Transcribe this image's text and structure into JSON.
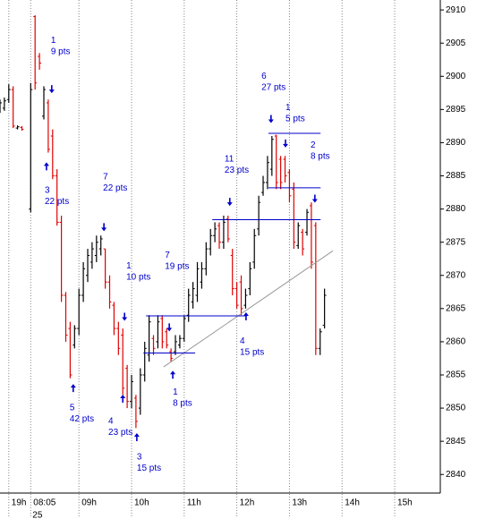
{
  "chart_data": {
    "type": "ohlc",
    "up_color": "#000000",
    "down_color": "#e00000",
    "annotation_color": "#0000cc",
    "level_color": "#0000cc",
    "trend_color": "#999999",
    "xlim": [
      0,
      100.4
    ],
    "ylim": [
      2837.2,
      2911.5
    ],
    "yticks": [
      2840,
      2845,
      2850,
      2855,
      2860,
      2865,
      2870,
      2875,
      2880,
      2885,
      2890,
      2895,
      2900,
      2905,
      2910
    ],
    "xticks": [
      {
        "value": 2,
        "label": "19h"
      },
      {
        "value": 7,
        "label": "08:05"
      },
      {
        "value": 18,
        "label": "09h"
      },
      {
        "value": 30,
        "label": "10h"
      },
      {
        "value": 42,
        "label": "11h"
      },
      {
        "value": 54,
        "label": "12h"
      },
      {
        "value": 66,
        "label": "13h"
      },
      {
        "value": 78,
        "label": "14h"
      },
      {
        "value": 90,
        "label": "15h"
      }
    ],
    "date_label": "25",
    "grid": true,
    "x": [
      0,
      1,
      2,
      3,
      4,
      5,
      7,
      8,
      9,
      10,
      11,
      12,
      13,
      14,
      15,
      16,
      17,
      18,
      19,
      20,
      21,
      22,
      23,
      24,
      25,
      26,
      27,
      28,
      29,
      30,
      31,
      32,
      33,
      34,
      35,
      36,
      37,
      38,
      39,
      40,
      41,
      42,
      43,
      44,
      45,
      46,
      47,
      48,
      49,
      50,
      51,
      52,
      53,
      54,
      55,
      56,
      57,
      58,
      59,
      60,
      61,
      62,
      63,
      64,
      65,
      66,
      67,
      68,
      69,
      70,
      71,
      72,
      73,
      74
    ],
    "open": [
      2895,
      2895.2,
      2896.5,
      2898,
      2892.2,
      2892.3,
      2880,
      2909,
      2903,
      2894,
      2896,
      2891,
      2885,
      2878,
      2867,
      2862,
      2859.5,
      2862,
      2867,
      2870,
      2872,
      2873,
      2874,
      2874,
      2869,
      2865.5,
      2862,
      2861,
      2856,
      2851,
      2851.5,
      2850,
      2855,
      2858,
      2860.5,
      2860,
      2863.5,
      2861.5,
      2858.5,
      2858.5,
      2859.5,
      2860.5,
      2864,
      2866,
      2867,
      2869,
      2871,
      2874,
      2876,
      2877.5,
      2875,
      2878.5,
      2873,
      2868,
      2869,
      2865.5,
      2868,
      2872,
      2877,
      2882.5,
      2884,
      2886,
      2891,
      2887.5,
      2887.5,
      2885.5,
      2883,
      2874.5,
      2876.5,
      2876.5,
      2880.5,
      2877.5,
      2859,
      2862.5
    ],
    "high": [
      2896.5,
      2896.8,
      2898.8,
      2898.5,
      2892.6,
      2892.5,
      2899,
      2909.2,
      2903.5,
      2898.5,
      2896.5,
      2892,
      2886,
      2879,
      2867.5,
      2863,
      2862.5,
      2868,
      2872,
      2874,
      2875,
      2876,
      2876,
      2874,
      2870,
      2866,
      2863,
      2862,
      2856.5,
      2855,
      2852,
      2856,
      2860,
      2864,
      2861,
      2864,
      2864,
      2862,
      2859,
      2861,
      2861,
      2864,
      2868,
      2869,
      2872,
      2872,
      2875,
      2877,
      2878,
      2878,
      2879,
      2879,
      2874,
      2869,
      2870,
      2868,
      2872,
      2877,
      2882,
      2885,
      2888,
      2891,
      2891.2,
      2888,
      2888,
      2886,
      2884,
      2878,
      2877,
      2880,
      2881,
      2878,
      2862,
      2868
    ],
    "low": [
      2894.5,
      2894.8,
      2896,
      2892.2,
      2892,
      2891.8,
      2879.5,
      2898,
      2901,
      2893.5,
      2888.5,
      2884.5,
      2877.5,
      2866,
      2860,
      2854.5,
      2859,
      2861,
      2866,
      2869,
      2871,
      2872,
      2873,
      2868,
      2865,
      2861,
      2858,
      2852,
      2850,
      2850,
      2847,
      2849,
      2854,
      2857,
      2858,
      2859,
      2859,
      2859,
      2857,
      2858,
      2859,
      2860,
      2863,
      2865,
      2866,
      2868,
      2870,
      2873,
      2875,
      2874,
      2874,
      2875,
      2867,
      2865,
      2864,
      2865,
      2867,
      2871,
      2876,
      2882,
      2883,
      2885,
      2883,
      2883,
      2884,
      2881,
      2874,
      2874,
      2873,
      2876,
      2871,
      2858,
      2858,
      2862
    ],
    "close": [
      2896,
      2896.3,
      2898,
      2892.5,
      2892.4,
      2892,
      2898,
      2899,
      2902,
      2898,
      2889,
      2885,
      2878,
      2867,
      2861,
      2855,
      2862,
      2867,
      2871,
      2873,
      2874,
      2875,
      2875.5,
      2869,
      2866,
      2862,
      2859,
      2853,
      2851,
      2854,
      2848,
      2855,
      2859,
      2863,
      2859,
      2863,
      2860,
      2859.5,
      2857.5,
      2860,
      2860.5,
      2863.5,
      2867,
      2868,
      2871,
      2871,
      2874,
      2876,
      2877,
      2875,
      2878,
      2875.5,
      2868,
      2865.5,
      2865,
      2867,
      2871,
      2876,
      2881,
      2884,
      2887,
      2890.5,
      2884,
      2884,
      2885,
      2882,
      2875,
      2877.5,
      2874,
      2879.5,
      2872,
      2859,
      2861.5,
      2867
    ],
    "annotations": [
      {
        "lines": [
          "1",
          "9 pts"
        ],
        "x": 11.6,
        "y": 2905.4
      },
      {
        "lines": [
          "3",
          "22 pts"
        ],
        "x": 10.2,
        "y": 2882.8
      },
      {
        "lines": [
          "7",
          "22 pts"
        ],
        "x": 23.5,
        "y": 2884.8
      },
      {
        "lines": [
          "1",
          "10 pts"
        ],
        "x": 28.8,
        "y": 2871.4
      },
      {
        "lines": [
          "5",
          "42 pts"
        ],
        "x": 15.9,
        "y": 2850
      },
      {
        "lines": [
          "4",
          "23 pts"
        ],
        "x": 24.7,
        "y": 2848
      },
      {
        "lines": [
          "3",
          "15 pts"
        ],
        "x": 31.2,
        "y": 2842.6
      },
      {
        "lines": [
          "7",
          "19 pts"
        ],
        "x": 37.6,
        "y": 2873
      },
      {
        "lines": [
          "1",
          "8 pts"
        ],
        "x": 39.4,
        "y": 2852.4
      },
      {
        "lines": [
          "11",
          "23 pts"
        ],
        "x": 51.2,
        "y": 2887.5
      },
      {
        "lines": [
          "4",
          "15 pts"
        ],
        "x": 54.7,
        "y": 2860.1
      },
      {
        "lines": [
          "6",
          "27 pts"
        ],
        "x": 59.6,
        "y": 2900
      },
      {
        "lines": [
          "1",
          "5 pts"
        ],
        "x": 65.1,
        "y": 2895.3
      },
      {
        "lines": [
          "2",
          "8 pts"
        ],
        "x": 70.8,
        "y": 2889.6
      }
    ],
    "arrows": [
      {
        "x": 11.8,
        "y": 2898,
        "dir": "down"
      },
      {
        "x": 23.7,
        "y": 2877.2,
        "dir": "down"
      },
      {
        "x": 28.4,
        "y": 2863.7,
        "dir": "down"
      },
      {
        "x": 38.6,
        "y": 2862.1,
        "dir": "down"
      },
      {
        "x": 52.4,
        "y": 2881,
        "dir": "down"
      },
      {
        "x": 61.8,
        "y": 2893.5,
        "dir": "down"
      },
      {
        "x": 65.1,
        "y": 2889.8,
        "dir": "down"
      },
      {
        "x": 71.8,
        "y": 2881.5,
        "dir": "down"
      },
      {
        "x": 10.6,
        "y": 2886.5,
        "dir": "up"
      },
      {
        "x": 16.7,
        "y": 2853.1,
        "dir": "up"
      },
      {
        "x": 28,
        "y": 2851.5,
        "dir": "up"
      },
      {
        "x": 31.2,
        "y": 2845.7,
        "dir": "up"
      },
      {
        "x": 39.4,
        "y": 2855.1,
        "dir": "up"
      },
      {
        "x": 56.1,
        "y": 2863.9,
        "dir": "up"
      }
    ],
    "levels": [
      {
        "y": 2863.9,
        "x": [
          33.3,
          56.1
        ]
      },
      {
        "y": 2858.3,
        "x": [
          32.7,
          44.5
        ]
      },
      {
        "y": 2878.4,
        "x": [
          48.4,
          73.1
        ]
      },
      {
        "y": 2883.2,
        "x": [
          61.2,
          73.1
        ]
      },
      {
        "y": 2891.4,
        "x": [
          61.2,
          73.1
        ]
      }
    ],
    "trend": {
      "x": [
        37.3,
        75.9
      ],
      "y": [
        2856.2,
        2873.7
      ]
    }
  }
}
